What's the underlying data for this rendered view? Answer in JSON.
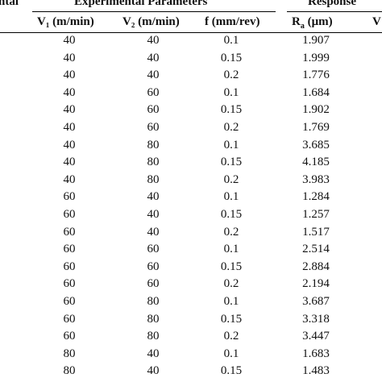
{
  "header": {
    "left_group_fragment": "ntal",
    "group_experimental": "Experimental Parameters",
    "group_response": "Response"
  },
  "columns": {
    "v1": "V₁ (m/min)",
    "v2": "V₂ (m/min)",
    "f": "f (mm/rev)",
    "ra_main": "R",
    "ra_sub": "a",
    "ra_unit": " (μm)",
    "cut": "V"
  },
  "rows": [
    {
      "v1": "40",
      "v2": "40",
      "f": "0.1",
      "ra": "1.907"
    },
    {
      "v1": "40",
      "v2": "40",
      "f": "0.15",
      "ra": "1.999"
    },
    {
      "v1": "40",
      "v2": "40",
      "f": "0.2",
      "ra": "1.776"
    },
    {
      "v1": "40",
      "v2": "60",
      "f": "0.1",
      "ra": "1.684"
    },
    {
      "v1": "40",
      "v2": "60",
      "f": "0.15",
      "ra": "1.902"
    },
    {
      "v1": "40",
      "v2": "60",
      "f": "0.2",
      "ra": "1.769"
    },
    {
      "v1": "40",
      "v2": "80",
      "f": "0.1",
      "ra": "3.685"
    },
    {
      "v1": "40",
      "v2": "80",
      "f": "0.15",
      "ra": "4.185"
    },
    {
      "v1": "40",
      "v2": "80",
      "f": "0.2",
      "ra": "3.983"
    },
    {
      "v1": "60",
      "v2": "40",
      "f": "0.1",
      "ra": "1.284"
    },
    {
      "v1": "60",
      "v2": "40",
      "f": "0.15",
      "ra": "1.257"
    },
    {
      "v1": "60",
      "v2": "40",
      "f": "0.2",
      "ra": "1.517"
    },
    {
      "v1": "60",
      "v2": "60",
      "f": "0.1",
      "ra": "2.514"
    },
    {
      "v1": "60",
      "v2": "60",
      "f": "0.15",
      "ra": "2.884"
    },
    {
      "v1": "60",
      "v2": "60",
      "f": "0.2",
      "ra": "2.194"
    },
    {
      "v1": "60",
      "v2": "80",
      "f": "0.1",
      "ra": "3.687"
    },
    {
      "v1": "60",
      "v2": "80",
      "f": "0.15",
      "ra": "3.318"
    },
    {
      "v1": "60",
      "v2": "80",
      "f": "0.2",
      "ra": "3.447"
    },
    {
      "v1": "80",
      "v2": "40",
      "f": "0.1",
      "ra": "1.683"
    },
    {
      "v1": "80",
      "v2": "40",
      "f": "0.15",
      "ra": "1.483"
    }
  ]
}
